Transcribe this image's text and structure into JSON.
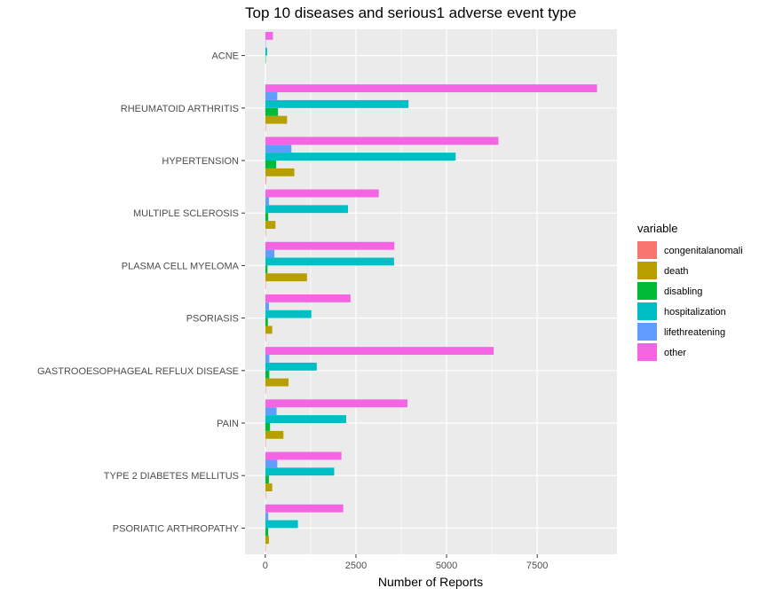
{
  "chart_data": {
    "type": "bar",
    "orientation": "horizontal",
    "title": "Top 10 diseases and serious1 adverse event type",
    "xlabel": "Number of Reports",
    "ylabel": "",
    "xlim": [
      -560,
      9700
    ],
    "x_ticks": [
      0,
      2500,
      5000,
      7500
    ],
    "x_tick_labels": [
      "0",
      "2500",
      "5000",
      "7500"
    ],
    "grid": true,
    "legend_position": "right",
    "legend_title": "variable",
    "categories": [
      "ACNE",
      "RHEUMATOID ARTHRITIS",
      "HYPERTENSION",
      "MULTIPLE SCLEROSIS",
      "PLASMA CELL MYELOMA",
      "PSORIASIS",
      "GASTROOESOPHAGEAL REFLUX DISEASE",
      "PAIN",
      "TYPE 2 DIABETES MELLITUS",
      "PSORIATIC ARTHROPATHY"
    ],
    "series": [
      {
        "name": "congenitalanomali",
        "color": "#F8766D",
        "values": [
          0,
          10,
          20,
          5,
          10,
          5,
          5,
          5,
          5,
          5
        ]
      },
      {
        "name": "death",
        "color": "#B79F00",
        "values": [
          0,
          600,
          800,
          280,
          1150,
          190,
          640,
          500,
          190,
          100
        ]
      },
      {
        "name": "disabling",
        "color": "#00BA38",
        "values": [
          5,
          350,
          300,
          80,
          60,
          70,
          110,
          130,
          100,
          80
        ]
      },
      {
        "name": "hospitalization",
        "color": "#00BFC4",
        "values": [
          50,
          3950,
          5250,
          2280,
          3550,
          1270,
          1420,
          2230,
          1900,
          900
        ]
      },
      {
        "name": "lifethreatening",
        "color": "#619CFF",
        "values": [
          5,
          330,
          720,
          100,
          250,
          100,
          110,
          310,
          330,
          80
        ]
      },
      {
        "name": "other",
        "color": "#F564E3",
        "values": [
          210,
          9150,
          6430,
          3130,
          3560,
          2350,
          6300,
          3920,
          2100,
          2150
        ]
      }
    ]
  }
}
